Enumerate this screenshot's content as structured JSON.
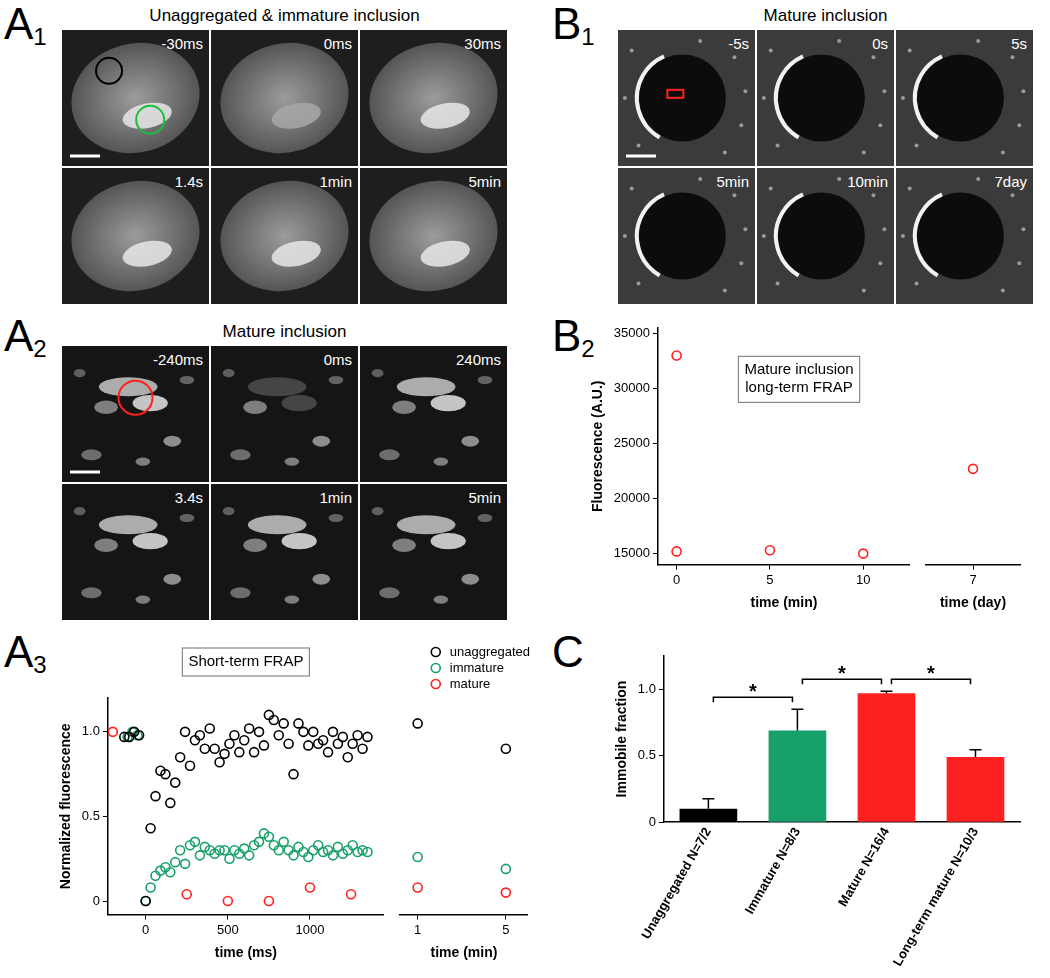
{
  "figure_labels": [
    {
      "letter": "A",
      "sub": "1"
    },
    {
      "letter": "A",
      "sub": "2"
    },
    {
      "letter": "A",
      "sub": "3"
    },
    {
      "letter": "B",
      "sub": "1"
    },
    {
      "letter": "B",
      "sub": "2"
    },
    {
      "letter": "C"
    }
  ],
  "image_panels": [
    {
      "title": "Unaggregated & immature inclusion",
      "frames": [
        "-30ms",
        "0ms",
        "30ms",
        "1.4s",
        "1min",
        "5min"
      ]
    },
    {
      "title": "Mature inclusion",
      "frames": [
        "-240ms",
        "0ms",
        "240ms",
        "3.4s",
        "1min",
        "5min"
      ]
    },
    {
      "title": "Mature inclusion",
      "frames": [
        "-5s",
        "0s",
        "5s",
        "5min",
        "10min",
        "7day"
      ]
    }
  ],
  "chart_data": [
    {
      "type": "scatter",
      "title": [
        "Short-term FRAP"
      ],
      "xlabel": "time (ms)",
      "ylabel": "Normalized fluorescence",
      "xlim": [
        -230,
        1450
      ],
      "xticks": [
        0,
        500,
        1000
      ],
      "ylim": [
        -0.08,
        1.2
      ],
      "yticks": [
        0,
        0.5,
        {
          "value": 1,
          "label": "1.0"
        }
      ],
      "marker": "circle",
      "series": [
        {
          "name": "unaggregated",
          "color": "#000000",
          "x": [
            -130,
            -100,
            -70,
            -40,
            0,
            30,
            60,
            90,
            120,
            150,
            180,
            210,
            240,
            270,
            300,
            330,
            360,
            390,
            420,
            450,
            480,
            510,
            540,
            570,
            600,
            630,
            660,
            690,
            720,
            750,
            780,
            810,
            840,
            870,
            900,
            930,
            960,
            990,
            1020,
            1050,
            1080,
            1110,
            1140,
            1170,
            1200,
            1230,
            1260,
            1290,
            1320,
            1350
          ],
          "values": [
            0.97,
            0.97,
            1.0,
            0.98,
            0.0,
            0.43,
            0.62,
            0.77,
            0.75,
            0.58,
            0.7,
            0.85,
            1.0,
            0.8,
            0.95,
            0.98,
            0.9,
            1.02,
            0.9,
            0.82,
            0.87,
            0.93,
            0.98,
            0.88,
            0.95,
            1.02,
            0.88,
            1.0,
            0.92,
            1.1,
            1.07,
            0.98,
            1.05,
            0.93,
            0.75,
            1.05,
            1.0,
            0.92,
            1.0,
            0.93,
            0.95,
            0.88,
            1.0,
            0.93,
            0.97,
            0.85,
            0.93,
            0.98,
            0.9,
            0.97
          ]
        },
        {
          "name": "immature",
          "color": "#18a06a",
          "x": [
            -110,
            -80,
            -50,
            0,
            30,
            60,
            90,
            120,
            150,
            180,
            210,
            240,
            270,
            300,
            330,
            360,
            390,
            420,
            450,
            480,
            510,
            540,
            570,
            600,
            630,
            660,
            690,
            720,
            750,
            780,
            810,
            840,
            870,
            900,
            930,
            960,
            990,
            1020,
            1050,
            1080,
            1110,
            1140,
            1170,
            1200,
            1230,
            1260,
            1290,
            1320,
            1350
          ],
          "values": [
            0.97,
            1.0,
            0.98,
            0.0,
            0.08,
            0.15,
            0.18,
            0.2,
            0.17,
            0.23,
            0.3,
            0.22,
            0.33,
            0.35,
            0.27,
            0.32,
            0.3,
            0.28,
            0.3,
            0.3,
            0.25,
            0.3,
            0.28,
            0.31,
            0.27,
            0.33,
            0.35,
            0.4,
            0.38,
            0.33,
            0.3,
            0.35,
            0.3,
            0.27,
            0.32,
            0.29,
            0.26,
            0.3,
            0.33,
            0.29,
            0.3,
            0.27,
            0.32,
            0.28,
            0.3,
            0.33,
            0.29,
            0.3,
            0.29
          ]
        },
        {
          "name": "mature",
          "color": "#ff2020",
          "x": [
            -200,
            250,
            500,
            750,
            1000,
            1250
          ],
          "values": [
            1.0,
            0.04,
            0.0,
            0.0,
            0.08,
            0.04
          ]
        }
      ]
    },
    {
      "type": "scatter",
      "xlabel": "time (min)",
      "xlim": [
        0.2,
        6
      ],
      "xticks": [
        1,
        5
      ],
      "ylim": [
        -0.08,
        1.2
      ],
      "tick_labels": "x",
      "legend": "upper right",
      "marker": "circle",
      "series": [
        {
          "name": "unaggregated",
          "color": "#000000",
          "x": [
            1,
            5
          ],
          "values": [
            1.05,
            0.9
          ]
        },
        {
          "name": "immature",
          "color": "#18a06a",
          "x": [
            1,
            5
          ],
          "values": [
            0.26,
            0.19
          ]
        },
        {
          "name": "mature",
          "color": "#ff2020",
          "x": [
            1,
            5
          ],
          "values": [
            0.08,
            0.05
          ]
        }
      ]
    },
    {
      "type": "scatter",
      "title": [
        "Mature inclusion",
        "long-term FRAP"
      ],
      "xlabel": "time (min)",
      "ylabel": "Fluorescence (A.U.)",
      "xlim": [
        -1,
        12.5
      ],
      "xticks": [
        0,
        5,
        10
      ],
      "ylim": [
        14000,
        35500
      ],
      "yticks": [
        15000,
        20000,
        25000,
        30000,
        35000
      ],
      "marker": "circle",
      "series": [
        {
          "color": "#ff2020",
          "x": [
            0,
            0,
            5,
            10
          ],
          "values": [
            33000,
            15200,
            15300,
            15000
          ]
        }
      ]
    },
    {
      "type": "scatter",
      "xlabel": "time (day)",
      "xlim": [
        6,
        8
      ],
      "xticks": [
        7
      ],
      "ylim": [
        14000,
        35500
      ],
      "tick_labels": "x",
      "marker": "circle",
      "series": [
        {
          "color": "#ff2020",
          "x": [
            7
          ],
          "values": [
            22700
          ]
        }
      ]
    },
    {
      "type": "bar",
      "ylabel": "Immobile fraction",
      "categories": [
        "Unaggregated N=7/2",
        "Immature N=8/3",
        "Mature N=16/4",
        "Long-term mature N=10/3"
      ],
      "values": [
        0.1,
        0.69,
        0.97,
        0.49
      ],
      "errors": [
        0.075,
        0.16,
        0.015,
        0.055
      ],
      "colors": [
        "#000000",
        "#18a06a",
        "#ff2020",
        "#ff2020"
      ],
      "ylim": [
        0,
        1.25
      ],
      "yticks": [
        0,
        0.5,
        {
          "value": 1,
          "label": "1.0"
        }
      ],
      "annotations": [
        {
          "text": "*",
          "between": [
            0,
            1
          ]
        },
        {
          "text": "*",
          "between": [
            1,
            2
          ]
        },
        {
          "text": "*",
          "between": [
            2,
            3
          ]
        }
      ]
    }
  ]
}
